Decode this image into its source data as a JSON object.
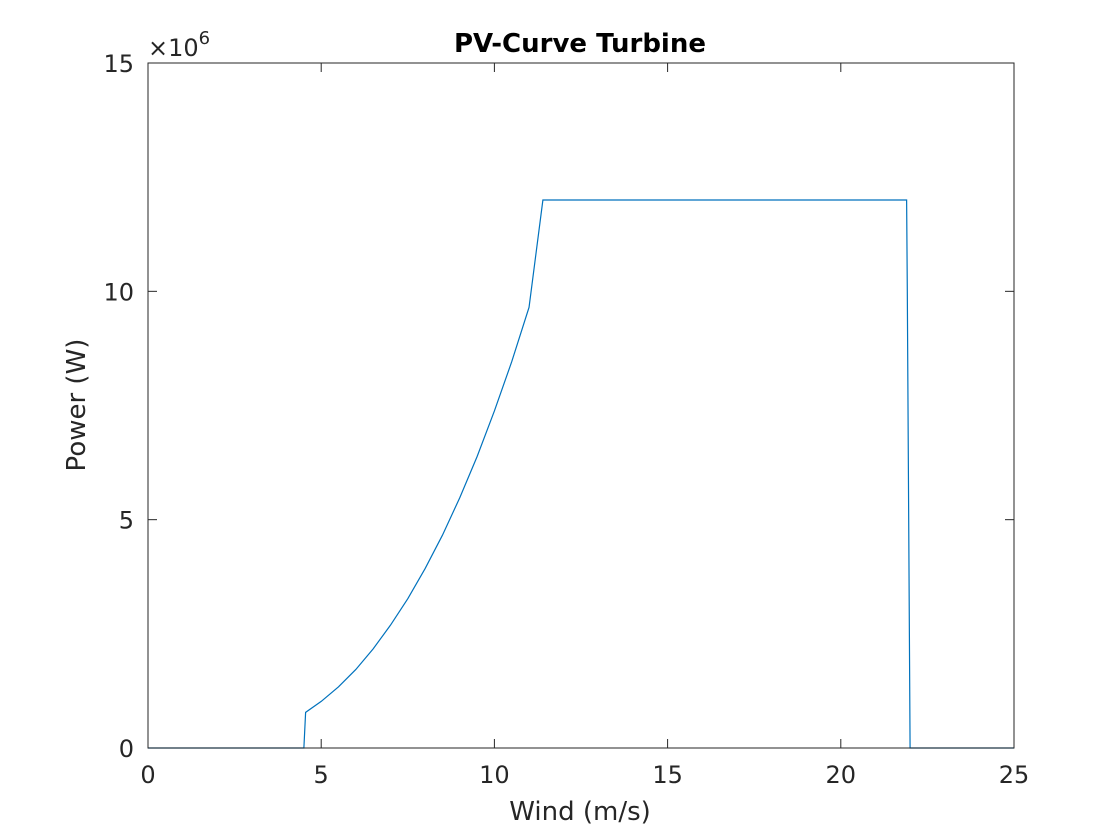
{
  "chart_data": {
    "type": "line",
    "title": "PV-Curve Turbine",
    "xlabel": "Wind (m/s)",
    "ylabel": "Power (W)",
    "xlim": [
      0,
      25
    ],
    "ylim": [
      0,
      15
    ],
    "y_multiplier": "×10",
    "y_multiplier_exponent": "6",
    "x_ticks": [
      "0",
      "5",
      "10",
      "15",
      "20",
      "25"
    ],
    "y_ticks": [
      "0",
      "5",
      "10",
      "15"
    ],
    "x_tick_values": [
      0,
      5,
      10,
      15,
      20,
      25
    ],
    "y_tick_values": [
      0,
      5,
      10,
      15
    ],
    "grid": false,
    "series": [
      {
        "color": "#0072BD",
        "x": [
          0,
          4.5,
          4.55,
          5,
          5.5,
          6,
          6.5,
          7,
          7.5,
          8,
          8.5,
          9,
          9.5,
          10,
          10.5,
          11,
          11.4,
          21.9,
          21.92,
          22.0,
          25
        ],
        "y": [
          0,
          0,
          0.78,
          1.02,
          1.34,
          1.72,
          2.17,
          2.69,
          3.27,
          3.93,
          4.66,
          5.48,
          6.38,
          7.38,
          8.46,
          9.65,
          12.0,
          12.0,
          10.0,
          0,
          0
        ]
      }
    ]
  }
}
